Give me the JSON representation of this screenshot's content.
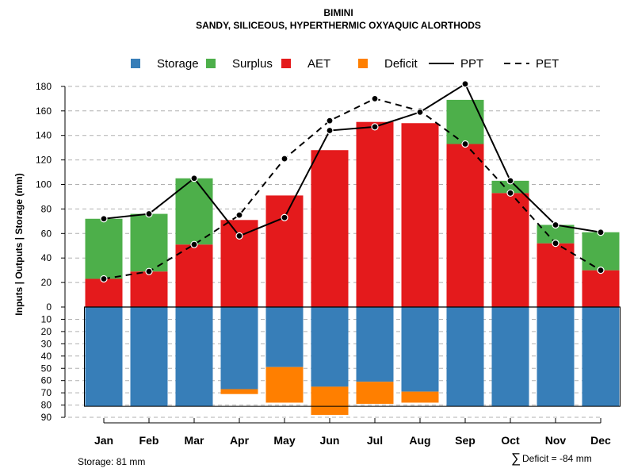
{
  "title": "BIMINI",
  "subtitle": "SANDY, SILICEOUS, HYPERTHERMIC OXYAQUIC ALORTHODS",
  "legend": [
    {
      "key": "storage",
      "label": "Storage",
      "color": "#377eb8",
      "type": "box"
    },
    {
      "key": "surplus",
      "label": "Surplus",
      "color": "#4daf4a",
      "type": "box"
    },
    {
      "key": "aet",
      "label": "AET",
      "color": "#e41a1c",
      "type": "box"
    },
    {
      "key": "deficit",
      "label": "Deficit",
      "color": "#ff7f00",
      "type": "box"
    },
    {
      "key": "ppt",
      "label": "PPT",
      "color": "#000000",
      "type": "solid"
    },
    {
      "key": "pet",
      "label": "PET",
      "color": "#000000",
      "type": "dashed"
    }
  ],
  "footer": {
    "storage_text": "Storage: 81 mm",
    "deficit_symbol": "∑",
    "deficit_text": "Deficit = -84 mm"
  },
  "chart_data": {
    "type": "bar",
    "categories": [
      "Jan",
      "Feb",
      "Mar",
      "Apr",
      "May",
      "Jun",
      "Jul",
      "Aug",
      "Sep",
      "Oct",
      "Nov",
      "Dec"
    ],
    "ylabel": "Inputs | Outputs | Storage    (mm)",
    "upper_ticks": [
      "0",
      "20",
      "40",
      "60",
      "80",
      "100",
      "120",
      "140",
      "160",
      "180"
    ],
    "lower_ticks": [
      "10",
      "20",
      "30",
      "40",
      "50",
      "60",
      "70",
      "80",
      "90"
    ],
    "ylim_upper": [
      0,
      190
    ],
    "ylim_lower": [
      0,
      90
    ],
    "storage_capacity": 81,
    "series": [
      {
        "name": "AET",
        "values": [
          23,
          29,
          51,
          71,
          91,
          128,
          151,
          150,
          133,
          93,
          52,
          30
        ]
      },
      {
        "name": "Surplus",
        "values": [
          49,
          47,
          54,
          0,
          0,
          0,
          0,
          0,
          36,
          10,
          15,
          31
        ]
      },
      {
        "name": "Storage",
        "values": [
          81,
          81,
          81,
          67,
          49,
          65,
          61,
          69,
          81,
          81,
          81,
          81
        ]
      },
      {
        "name": "Deficit",
        "values": [
          0,
          0,
          0,
          4,
          29,
          23,
          18,
          9,
          0,
          0,
          0,
          0
        ]
      },
      {
        "name": "PPT",
        "values": [
          72,
          76,
          105,
          58,
          73,
          144,
          147,
          159,
          182,
          103,
          67,
          61
        ]
      },
      {
        "name": "PET",
        "values": [
          23,
          29,
          51,
          75,
          121,
          152,
          170,
          160,
          133,
          93,
          52,
          30
        ]
      }
    ]
  }
}
